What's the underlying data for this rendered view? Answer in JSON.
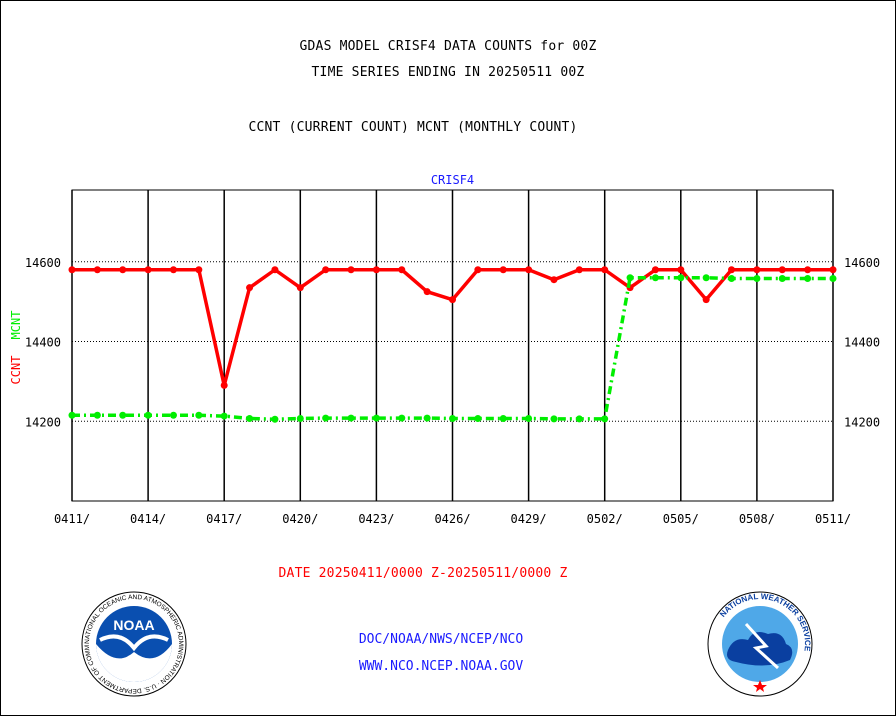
{
  "header": {
    "line1": "GDAS MODEL CRISF4 DATA COUNTS for 00Z",
    "line2": "TIME SERIES ENDING IN 20250511 00Z",
    "line3": "CCNT (CURRENT COUNT) MCNT (MONTHLY COUNT)"
  },
  "footer": {
    "date_range": "DATE 20250411/0000 Z-20250511/0000 Z",
    "org_path": "DOC/NOAA/NWS/NCEP/NCO",
    "website": "WWW.NCO.NCEP.NOAA.GOV"
  },
  "logos": {
    "noaa_text": "NOAA",
    "noaa_ring": "NATIONAL OCEANIC AND ATMOSPHERIC ADMINISTRATION · U.S. DEPARTMENT OF COMMERCE",
    "nws_ring": "NATIONAL WEATHER SERVICE"
  },
  "chart_data": {
    "type": "line",
    "title": "CRISF4",
    "xlabel": "",
    "ylabel_left": "CCNT",
    "ylabel_left_second": "MCNT",
    "ylim": [
      14000,
      14780
    ],
    "yticks": [
      14200,
      14400,
      14600
    ],
    "ytick_labels": [
      "14200",
      "14400",
      "14600"
    ],
    "xticks": [
      "0411/",
      "0414/",
      "0417/",
      "0420/",
      "0423/",
      "0426/",
      "0429/",
      "0502/",
      "0505/",
      "0508/",
      "0511/"
    ],
    "grid": "dotted horizontal at y ticks, solid vertical every 3 days",
    "x": [
      "0411",
      "0412",
      "0413",
      "0414",
      "0415",
      "0416",
      "0417",
      "0418",
      "0419",
      "0420",
      "0421",
      "0422",
      "0423",
      "0424",
      "0425",
      "0426",
      "0427",
      "0428",
      "0429",
      "0430",
      "0501",
      "0502",
      "0503",
      "0504",
      "0505",
      "0506",
      "0507",
      "0508",
      "0509",
      "0510",
      "0511"
    ],
    "series": [
      {
        "name": "CCNT",
        "color": "#ff0000",
        "style": "solid",
        "values": [
          14580,
          14580,
          14580,
          14580,
          14580,
          14580,
          14290,
          14535,
          14580,
          14535,
          14580,
          14580,
          14580,
          14580,
          14525,
          14505,
          14580,
          14580,
          14580,
          14555,
          14580,
          14580,
          14535,
          14580,
          14580,
          14505,
          14580,
          14580,
          14580,
          14580,
          14580
        ]
      },
      {
        "name": "MCNT",
        "color": "#00ee00",
        "style": "dash-dot",
        "values": [
          14215,
          14215,
          14215,
          14215,
          14215,
          14215,
          14213,
          14207,
          14205,
          14207,
          14208,
          14208,
          14208,
          14208,
          14208,
          14207,
          14207,
          14207,
          14207,
          14206,
          14206,
          14206,
          14560,
          14560,
          14560,
          14560,
          14558,
          14558,
          14558,
          14558,
          14558
        ]
      }
    ],
    "colors": {
      "title": "#1a1aff",
      "axis_text": "#000000"
    }
  }
}
